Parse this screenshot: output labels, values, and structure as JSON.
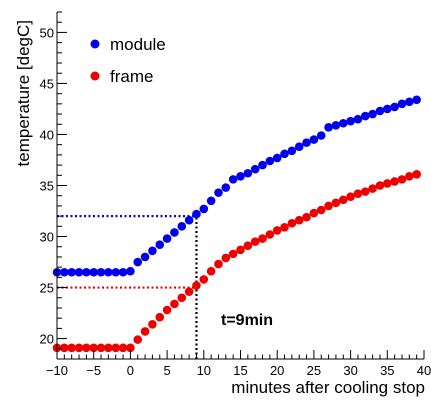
{
  "chart_data": {
    "type": "scatter",
    "title": "",
    "xlabel": "minutes after cooling stop",
    "ylabel": "temperature [degC]",
    "xlim": [
      -10,
      40
    ],
    "ylim": [
      18,
      52
    ],
    "x_ticks": [
      -10,
      -5,
      0,
      5,
      10,
      15,
      20,
      25,
      30,
      35,
      40
    ],
    "y_ticks": [
      20,
      25,
      30,
      35,
      40,
      45,
      50
    ],
    "grid": false,
    "legend_position": "top-left",
    "series": [
      {
        "name": "module",
        "color": "#0000ee",
        "x": [
          -10,
          -9,
          -8,
          -7,
          -6,
          -5,
          -4,
          -3,
          -2,
          -1,
          0,
          1,
          2,
          3,
          4,
          5,
          6,
          7,
          8,
          9,
          10,
          11,
          12,
          13,
          14,
          15,
          16,
          17,
          18,
          19,
          20,
          21,
          22,
          23,
          24,
          25,
          26,
          27,
          28,
          29,
          30,
          31,
          32,
          33,
          34,
          35,
          36,
          37,
          38,
          39
        ],
        "values": [
          26.5,
          26.5,
          26.5,
          26.5,
          26.5,
          26.5,
          26.5,
          26.5,
          26.5,
          26.5,
          26.6,
          27.5,
          28.0,
          28.6,
          29.2,
          29.8,
          30.4,
          31.0,
          31.6,
          32.2,
          32.7,
          33.5,
          34.3,
          34.8,
          35.6,
          35.9,
          36.2,
          36.6,
          37.0,
          37.4,
          37.7,
          38.1,
          38.4,
          38.8,
          39.2,
          39.5,
          39.9,
          40.7,
          40.9,
          41.1,
          41.3,
          41.5,
          41.8,
          42.0,
          42.3,
          42.5,
          42.7,
          43.0,
          43.2,
          43.4
        ]
      },
      {
        "name": "frame",
        "color": "#ee0000",
        "x": [
          -10,
          -9,
          -8,
          -7,
          -6,
          -5,
          -4,
          -3,
          -2,
          -1,
          0,
          1,
          2,
          3,
          4,
          5,
          6,
          7,
          8,
          9,
          10,
          11,
          12,
          13,
          14,
          15,
          16,
          17,
          18,
          19,
          20,
          21,
          22,
          23,
          24,
          25,
          26,
          27,
          28,
          29,
          30,
          31,
          32,
          33,
          34,
          35,
          36,
          37,
          38,
          39
        ],
        "values": [
          19.1,
          19.1,
          19.1,
          19.1,
          19.1,
          19.1,
          19.1,
          19.1,
          19.1,
          19.1,
          19.1,
          19.9,
          20.7,
          21.4,
          22.1,
          22.8,
          23.4,
          24.0,
          24.6,
          25.2,
          25.8,
          26.6,
          27.3,
          27.9,
          28.3,
          28.7,
          29.1,
          29.5,
          29.8,
          30.2,
          30.6,
          30.9,
          31.3,
          31.6,
          31.9,
          32.3,
          32.6,
          33.0,
          33.3,
          33.6,
          33.9,
          34.2,
          34.4,
          34.7,
          35.0,
          35.2,
          35.4,
          35.6,
          35.9,
          36.1
        ]
      }
    ],
    "reference_lines": [
      {
        "orientation": "horizontal",
        "y": 32,
        "x_from": -10,
        "x_to": 9,
        "color": "#0000ee",
        "style": "dotted"
      },
      {
        "orientation": "horizontal",
        "y": 25,
        "x_from": -10,
        "x_to": 9,
        "color": "#ee0000",
        "style": "dotted"
      },
      {
        "orientation": "vertical",
        "x": 9,
        "y_from": 18,
        "y_to": 32,
        "color": "#000000",
        "style": "dotted"
      }
    ],
    "annotation": "t=9min"
  }
}
